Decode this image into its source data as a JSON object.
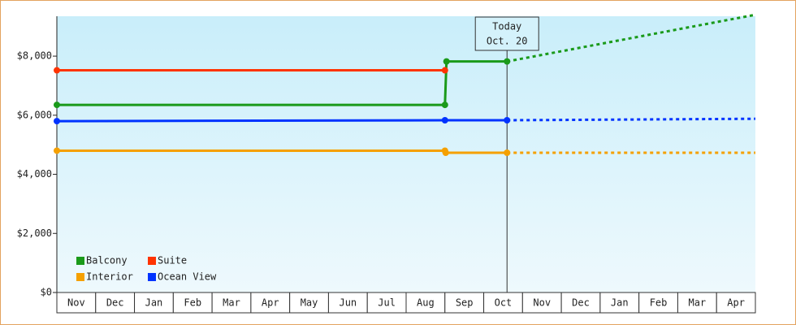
{
  "chart_data": {
    "type": "line",
    "categories": [
      "Nov",
      "Dec",
      "Jan",
      "Feb",
      "Mar",
      "Apr",
      "May",
      "Jun",
      "Jul",
      "Aug",
      "Sep",
      "Oct",
      "Nov",
      "Dec",
      "Jan",
      "Feb",
      "Mar",
      "Apr"
    ],
    "xlim": [
      0,
      18
    ],
    "ylim": [
      0,
      9350
    ],
    "yticks": [
      {
        "value": 0,
        "label": "$0"
      },
      {
        "value": 2000,
        "label": "$2,000"
      },
      {
        "value": 4000,
        "label": "$4,000"
      },
      {
        "value": 6000,
        "label": "$6,000"
      },
      {
        "value": 8000,
        "label": "$8,000"
      }
    ],
    "annotation": {
      "lines": [
        "Today",
        "Oct. 20"
      ],
      "x": 11.6
    },
    "series": [
      {
        "name": "Balcony",
        "color": "#1a9a1a",
        "x": [
          0,
          10,
          10.04,
          11.6
        ],
        "values": [
          6350,
          6350,
          7820,
          7820
        ],
        "forecast": {
          "x": [
            11.6,
            18
          ],
          "values": [
            7820,
            9400
          ]
        }
      },
      {
        "name": "Suite",
        "color": "#ff3300",
        "x": [
          0,
          10
        ],
        "values": [
          7520,
          7520
        ]
      },
      {
        "name": "Interior",
        "color": "#f5a000",
        "x": [
          0,
          10,
          10.02,
          11.6
        ],
        "values": [
          4800,
          4800,
          4730,
          4730
        ],
        "forecast": {
          "x": [
            11.6,
            18
          ],
          "values": [
            4730,
            4730
          ]
        }
      },
      {
        "name": "Ocean View",
        "color": "#0033ff",
        "x": [
          0,
          10,
          11.6
        ],
        "values": [
          5800,
          5830,
          5830
        ],
        "forecast": {
          "x": [
            11.6,
            18
          ],
          "values": [
            5830,
            5880
          ]
        }
      }
    ]
  }
}
